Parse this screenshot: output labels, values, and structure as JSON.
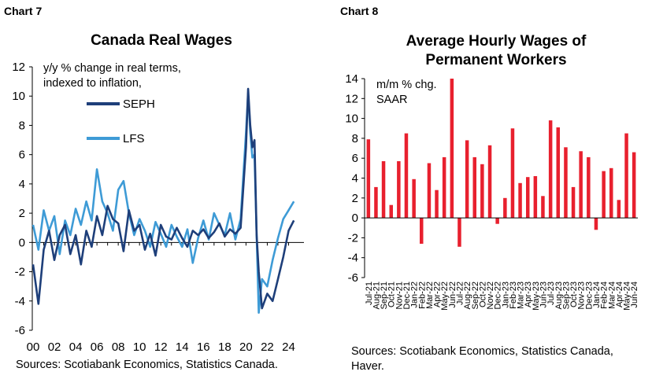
{
  "chart_data": [
    {
      "type": "line",
      "label": "Chart 7",
      "title": "Canada Real Wages",
      "annotation_lines": [
        "y/y % change in real terms,",
        "indexed to inflation,"
      ],
      "xlim": [
        0,
        25
      ],
      "ylim": [
        -6,
        12
      ],
      "y_ticks": [
        -6,
        -4,
        -2,
        0,
        2,
        4,
        6,
        8,
        10,
        12
      ],
      "x_ticks": [
        0,
        2,
        4,
        6,
        8,
        10,
        12,
        14,
        16,
        18,
        20,
        22,
        24
      ],
      "x_tick_labels": [
        "00",
        "02",
        "04",
        "06",
        "08",
        "10",
        "12",
        "14",
        "16",
        "18",
        "20",
        "22",
        "24"
      ],
      "series": [
        {
          "name": "SEPH",
          "color": "#1e3f7a",
          "x": [
            0.0,
            0.5,
            1.0,
            1.5,
            2.0,
            2.5,
            3.0,
            3.5,
            4.0,
            4.5,
            5.0,
            5.5,
            6.0,
            6.5,
            7.0,
            7.5,
            8.0,
            8.5,
            9.0,
            9.5,
            10.0,
            10.5,
            11.0,
            11.5,
            12.0,
            12.5,
            13.0,
            13.5,
            14.0,
            14.5,
            15.0,
            15.5,
            16.0,
            16.5,
            17.0,
            17.5,
            18.0,
            18.5,
            19.0,
            19.5,
            20.0,
            20.2,
            20.4,
            20.6,
            20.8,
            21.0,
            21.2,
            21.5,
            22.0,
            22.5,
            23.0,
            23.5,
            24.0,
            24.5
          ],
          "values": [
            -1.5,
            -4.2,
            -0.5,
            0.8,
            -1.2,
            0.5,
            1.2,
            -0.8,
            0.5,
            -1.5,
            0.8,
            -0.3,
            1.8,
            0.5,
            2.5,
            1.6,
            1.3,
            -0.6,
            2.2,
            0.8,
            1.2,
            -0.5,
            0.6,
            -0.9,
            1.2,
            0.4,
            0.2,
            1.0,
            0.3,
            -0.3,
            0.8,
            0.5,
            0.9,
            0.3,
            0.7,
            1.3,
            0.4,
            0.9,
            0.6,
            1.0,
            6.5,
            10.5,
            8.0,
            6.5,
            7.0,
            0.5,
            -2.0,
            -4.5,
            -3.5,
            -4.0,
            -2.5,
            -1.0,
            0.8,
            1.5
          ]
        },
        {
          "name": "LFS",
          "color": "#3e9bd6",
          "x": [
            0.0,
            0.5,
            1.0,
            1.5,
            2.0,
            2.5,
            3.0,
            3.5,
            4.0,
            4.5,
            5.0,
            5.5,
            6.0,
            6.5,
            7.0,
            7.5,
            8.0,
            8.5,
            9.0,
            9.5,
            10.0,
            10.5,
            11.0,
            11.5,
            12.0,
            12.5,
            13.0,
            13.5,
            14.0,
            14.5,
            15.0,
            15.5,
            16.0,
            16.5,
            17.0,
            17.5,
            18.0,
            18.5,
            19.0,
            19.5,
            20.0,
            20.2,
            20.4,
            20.6,
            20.8,
            21.0,
            21.2,
            21.5,
            22.0,
            22.5,
            23.0,
            23.5,
            24.0,
            24.5
          ],
          "values": [
            1.2,
            -0.5,
            2.2,
            0.8,
            1.8,
            -0.8,
            1.5,
            0.5,
            2.3,
            1.2,
            2.8,
            1.5,
            5.0,
            2.8,
            2.0,
            0.8,
            3.6,
            4.2,
            2.0,
            0.5,
            1.6,
            0.8,
            -0.3,
            1.4,
            0.6,
            -0.3,
            1.2,
            0.4,
            -0.3,
            0.9,
            -1.4,
            0.3,
            1.5,
            0.2,
            2.0,
            1.2,
            0.5,
            2.0,
            0.2,
            1.6,
            7.5,
            10.2,
            7.5,
            5.8,
            6.0,
            0.5,
            -4.8,
            -2.5,
            -3.0,
            -1.2,
            0.3,
            1.6,
            2.2,
            2.8
          ]
        }
      ]
    },
    {
      "type": "bar",
      "label": "Chart 8",
      "title": "Average Hourly Wages of Permanent Workers",
      "title_lines": [
        "Average Hourly Wages of",
        "Permanent Workers"
      ],
      "annotation_lines": [
        "m/m % chg.",
        "SAAR"
      ],
      "ylim": [
        -6,
        14
      ],
      "y_ticks": [
        -6,
        -4,
        -2,
        0,
        2,
        4,
        6,
        8,
        10,
        12,
        14
      ],
      "color": "#e8202e",
      "categories": [
        "Jul-21",
        "Aug-21",
        "Sep-21",
        "Oct-21",
        "Nov-21",
        "Dec-21",
        "Jan-22",
        "Feb-22",
        "Mar-22",
        "Apr-22",
        "May-22",
        "Jun-22",
        "Jul-22",
        "Aug-22",
        "Sep-22",
        "Oct-22",
        "Nov-22",
        "Dec-22",
        "Jan-23",
        "Feb-23",
        "Mar-23",
        "Apr-23",
        "May-23",
        "Jun-23",
        "Jul-23",
        "Aug-23",
        "Sep-23",
        "Oct-23",
        "Nov-23",
        "Dec-23",
        "Jan-24",
        "Feb-24",
        "Mar-24",
        "Apr-24",
        "May-24",
        "Jun-24"
      ],
      "values": [
        7.9,
        3.1,
        5.7,
        1.3,
        5.7,
        8.5,
        3.9,
        -2.6,
        5.5,
        2.8,
        6.1,
        14.0,
        -2.9,
        7.8,
        6.1,
        5.4,
        7.3,
        -0.6,
        2.0,
        9.0,
        3.5,
        4.1,
        4.2,
        2.2,
        9.8,
        9.1,
        7.1,
        3.1,
        6.7,
        6.1,
        -1.2,
        4.7,
        5.0,
        1.8,
        8.5,
        6.6
      ]
    }
  ],
  "chart7_source": "Sources: Scotiabank Economics, Statistics Canada.",
  "chart8_source_lines": [
    "Sources: Scotiabank Economics, Statistics Canada,",
    "Haver."
  ]
}
